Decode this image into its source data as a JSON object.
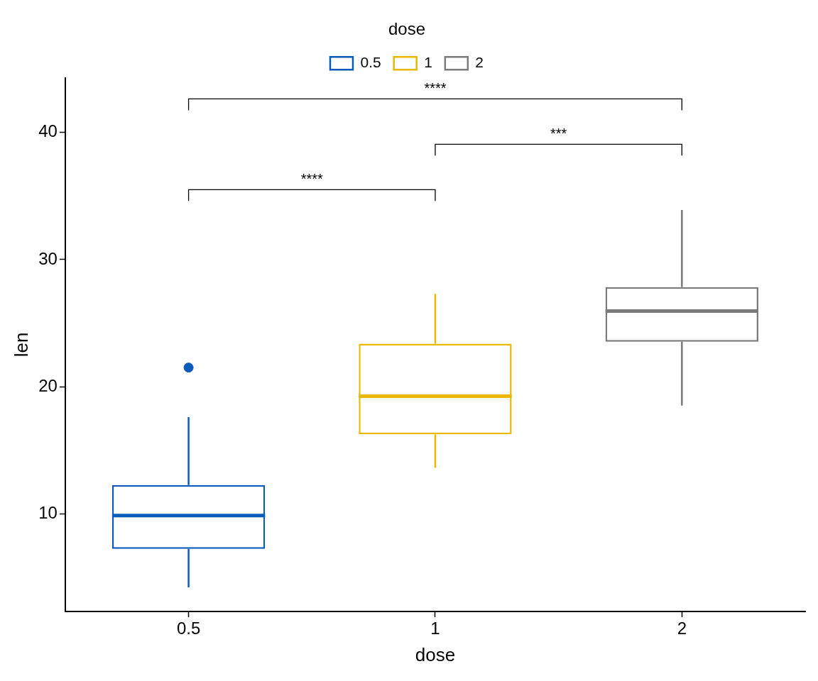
{
  "chart_data": {
    "type": "box",
    "xlabel": "dose",
    "ylabel": "len",
    "legend_title": "dose",
    "legend": "top",
    "categories": [
      "0.5",
      "1",
      "2"
    ],
    "series": [
      {
        "name": "0.5",
        "color": "#0b5cba",
        "boxes": [
          {
            "low": 4.2,
            "q1": 7.225,
            "median": 9.85,
            "q3": 12.25,
            "high": 17.6,
            "outliers": [
              21.5
            ]
          },
          null,
          null
        ]
      },
      {
        "name": "1",
        "color": "#eab800",
        "boxes": [
          null,
          {
            "low": 13.6,
            "q1": 16.25,
            "median": 19.25,
            "q3": 23.375,
            "high": 27.3
          },
          null
        ]
      },
      {
        "name": "2",
        "color": "#7b7b7b",
        "boxes": [
          null,
          null,
          {
            "low": 18.5,
            "q1": 23.525,
            "median": 25.95,
            "q3": 27.825,
            "high": 33.9
          }
        ]
      }
    ],
    "ylim": [
      2.3,
      44.3
    ],
    "yticks": [
      10,
      20,
      30,
      40
    ],
    "annotations": [
      "****",
      "***",
      "****"
    ]
  }
}
